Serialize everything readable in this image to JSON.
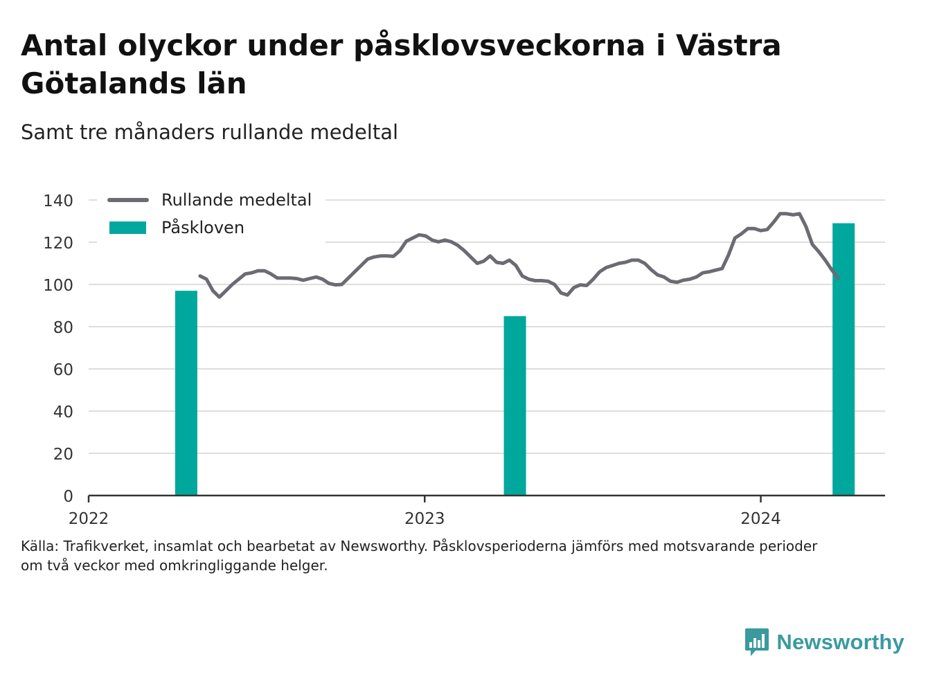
{
  "title": "Antal olyckor under påsklovsveckorna i Västra Götalands län",
  "subtitle": "Samt tre månaders rullande medeltal",
  "footnote": {
    "line1": "Källa: Trafikverket, insamlat och bearbetat av Newsworthy. Påsklovsperioderna jämförs med motsvarande perioder",
    "line2": "om två veckor med omkringliggande helger."
  },
  "brand": {
    "name": "Newsworthy",
    "icon": "newsworthy-logo-icon",
    "color": "#3a9a9e"
  },
  "chart_data": {
    "type": "bar",
    "x_axis": {
      "ticks": [
        2022,
        2023,
        2024
      ],
      "tick_labels": [
        "2022",
        "2023",
        "2024"
      ],
      "range": [
        "2022-01-01",
        "2024-05-15"
      ]
    },
    "y_axis": {
      "ticks": [
        0,
        20,
        40,
        60,
        80,
        100,
        120,
        140
      ],
      "range": [
        0,
        140
      ],
      "grid": true
    },
    "legend": {
      "position": "top-left",
      "items": [
        {
          "label": "Rullande medeltal",
          "kind": "line",
          "color": "#6b6b73"
        },
        {
          "label": "Påskloven",
          "kind": "bar",
          "color": "#00a79d"
        }
      ]
    },
    "series": [
      {
        "name": "Påskloven",
        "type": "bar",
        "color": "#00a79d",
        "points": [
          {
            "x": "2022-04-17",
            "y": 97
          },
          {
            "x": "2023-04-09",
            "y": 85
          },
          {
            "x": "2024-03-31",
            "y": 129
          }
        ]
      },
      {
        "name": "Rullande medeltal",
        "type": "line",
        "color": "#6b6b73",
        "points": [
          {
            "x": "2022-05-02",
            "y": 104
          },
          {
            "x": "2022-05-09",
            "y": 102.5
          },
          {
            "x": "2022-05-16",
            "y": 97
          },
          {
            "x": "2022-05-23",
            "y": 94
          },
          {
            "x": "2022-05-30",
            "y": 97
          },
          {
            "x": "2022-06-06",
            "y": 100
          },
          {
            "x": "2022-06-13",
            "y": 102.5
          },
          {
            "x": "2022-06-20",
            "y": 105
          },
          {
            "x": "2022-06-27",
            "y": 105.5
          },
          {
            "x": "2022-07-04",
            "y": 106.5
          },
          {
            "x": "2022-07-11",
            "y": 106.5
          },
          {
            "x": "2022-07-18",
            "y": 105
          },
          {
            "x": "2022-07-25",
            "y": 103
          },
          {
            "x": "2022-08-01",
            "y": 103
          },
          {
            "x": "2022-08-08",
            "y": 103
          },
          {
            "x": "2022-08-15",
            "y": 102.8
          },
          {
            "x": "2022-08-22",
            "y": 102
          },
          {
            "x": "2022-08-29",
            "y": 102.8
          },
          {
            "x": "2022-09-05",
            "y": 103.5
          },
          {
            "x": "2022-09-12",
            "y": 102.5
          },
          {
            "x": "2022-09-19",
            "y": 100.5
          },
          {
            "x": "2022-09-26",
            "y": 99.8
          },
          {
            "x": "2022-10-03",
            "y": 100
          },
          {
            "x": "2022-10-10",
            "y": 103
          },
          {
            "x": "2022-10-17",
            "y": 106
          },
          {
            "x": "2022-10-24",
            "y": 109
          },
          {
            "x": "2022-10-31",
            "y": 112
          },
          {
            "x": "2022-11-07",
            "y": 113
          },
          {
            "x": "2022-11-14",
            "y": 113.5
          },
          {
            "x": "2022-11-21",
            "y": 113.5
          },
          {
            "x": "2022-11-28",
            "y": 113.3
          },
          {
            "x": "2022-12-05",
            "y": 116
          },
          {
            "x": "2022-12-12",
            "y": 120.5
          },
          {
            "x": "2022-12-19",
            "y": 122
          },
          {
            "x": "2022-12-26",
            "y": 123.5
          },
          {
            "x": "2023-01-02",
            "y": 123
          },
          {
            "x": "2023-01-09",
            "y": 121
          },
          {
            "x": "2023-01-16",
            "y": 120.2
          },
          {
            "x": "2023-01-23",
            "y": 121
          },
          {
            "x": "2023-01-30",
            "y": 120.2
          },
          {
            "x": "2023-02-06",
            "y": 118.5
          },
          {
            "x": "2023-02-13",
            "y": 116
          },
          {
            "x": "2023-02-20",
            "y": 113
          },
          {
            "x": "2023-02-27",
            "y": 110
          },
          {
            "x": "2023-03-06",
            "y": 111
          },
          {
            "x": "2023-03-13",
            "y": 113.5
          },
          {
            "x": "2023-03-20",
            "y": 110.5
          },
          {
            "x": "2023-03-27",
            "y": 110
          },
          {
            "x": "2023-04-03",
            "y": 111.5
          },
          {
            "x": "2023-04-10",
            "y": 109
          },
          {
            "x": "2023-04-17",
            "y": 104
          },
          {
            "x": "2023-04-24",
            "y": 102.5
          },
          {
            "x": "2023-05-01",
            "y": 101.8
          },
          {
            "x": "2023-05-08",
            "y": 101.8
          },
          {
            "x": "2023-05-15",
            "y": 101.5
          },
          {
            "x": "2023-05-22",
            "y": 100
          },
          {
            "x": "2023-05-29",
            "y": 96
          },
          {
            "x": "2023-06-05",
            "y": 95
          },
          {
            "x": "2023-06-12",
            "y": 98.5
          },
          {
            "x": "2023-06-19",
            "y": 99.8
          },
          {
            "x": "2023-06-26",
            "y": 99.5
          },
          {
            "x": "2023-07-03",
            "y": 102.5
          },
          {
            "x": "2023-07-10",
            "y": 106
          },
          {
            "x": "2023-07-17",
            "y": 108
          },
          {
            "x": "2023-07-24",
            "y": 109
          },
          {
            "x": "2023-07-31",
            "y": 110
          },
          {
            "x": "2023-08-07",
            "y": 110.5
          },
          {
            "x": "2023-08-14",
            "y": 111.5
          },
          {
            "x": "2023-08-21",
            "y": 111.5
          },
          {
            "x": "2023-08-28",
            "y": 110
          },
          {
            "x": "2023-09-04",
            "y": 107
          },
          {
            "x": "2023-09-11",
            "y": 104.5
          },
          {
            "x": "2023-09-18",
            "y": 103.5
          },
          {
            "x": "2023-09-25",
            "y": 101.5
          },
          {
            "x": "2023-10-02",
            "y": 101
          },
          {
            "x": "2023-10-09",
            "y": 102
          },
          {
            "x": "2023-10-16",
            "y": 102.5
          },
          {
            "x": "2023-10-23",
            "y": 103.5
          },
          {
            "x": "2023-10-30",
            "y": 105.5
          },
          {
            "x": "2023-11-06",
            "y": 106
          },
          {
            "x": "2023-11-13",
            "y": 106.8
          },
          {
            "x": "2023-11-20",
            "y": 107.5
          },
          {
            "x": "2023-11-27",
            "y": 114
          },
          {
            "x": "2023-12-04",
            "y": 122
          },
          {
            "x": "2023-12-11",
            "y": 124
          },
          {
            "x": "2023-12-18",
            "y": 126.5
          },
          {
            "x": "2023-12-25",
            "y": 126.5
          },
          {
            "x": "2024-01-01",
            "y": 125.5
          },
          {
            "x": "2024-01-08",
            "y": 126
          },
          {
            "x": "2024-01-15",
            "y": 129.5
          },
          {
            "x": "2024-01-22",
            "y": 133.5
          },
          {
            "x": "2024-01-29",
            "y": 133.5
          },
          {
            "x": "2024-02-05",
            "y": 133
          },
          {
            "x": "2024-02-12",
            "y": 133.5
          },
          {
            "x": "2024-02-19",
            "y": 127.5
          },
          {
            "x": "2024-02-26",
            "y": 119
          },
          {
            "x": "2024-03-04",
            "y": 115.5
          },
          {
            "x": "2024-03-11",
            "y": 111.5
          },
          {
            "x": "2024-03-18",
            "y": 107
          },
          {
            "x": "2024-03-25",
            "y": 103
          }
        ]
      }
    ]
  }
}
